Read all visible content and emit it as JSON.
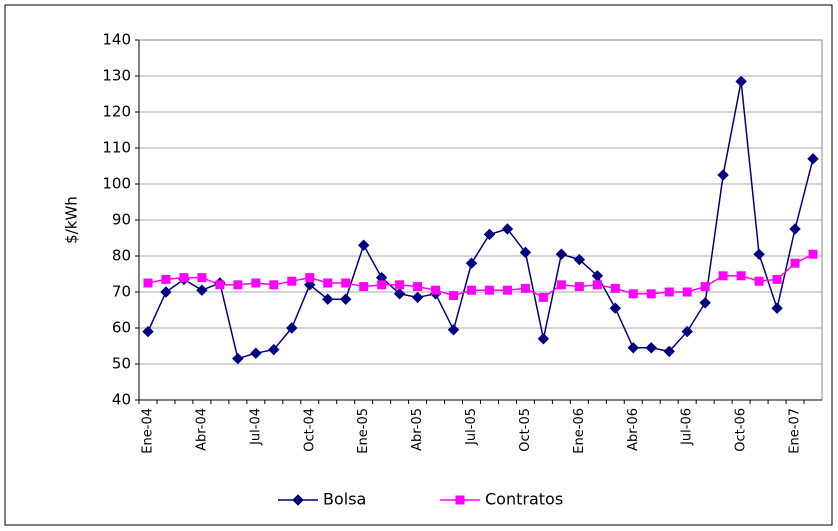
{
  "chart_data": {
    "type": "line",
    "y_label": "$/kWh",
    "categories": [
      "Ene-04",
      null,
      null,
      "Abr-04",
      null,
      null,
      "Jul-04",
      null,
      null,
      "Oct-04",
      null,
      null,
      "Ene-05",
      null,
      null,
      "Abr-05",
      null,
      null,
      "Jul-05",
      null,
      null,
      "Oct-05",
      null,
      null,
      "Ene-06",
      null,
      null,
      "Abr-06",
      null,
      null,
      "Jul-06",
      null,
      null,
      "Oct-06",
      null,
      null,
      "Ene-07",
      null
    ],
    "series": [
      {
        "name": "Bolsa",
        "color": "#000080",
        "marker": "diamond",
        "values": [
          59,
          70,
          73.5,
          70.5,
          72.5,
          51.5,
          53,
          54,
          60,
          72,
          68,
          68,
          83,
          74,
          69.5,
          68.5,
          69.5,
          59.5,
          78,
          86,
          87.5,
          81,
          57,
          80.5,
          79,
          74.5,
          65.5,
          54.5,
          54.5,
          53.5,
          59,
          67,
          102.5,
          128.5,
          80.5,
          65.5,
          87.5,
          107
        ]
      },
      {
        "name": "Contratos",
        "color": "#ff00ff",
        "marker": "square",
        "values": [
          72.5,
          73.5,
          74,
          74,
          72,
          72,
          72.5,
          72,
          73,
          74,
          72.5,
          72.5,
          71.5,
          72,
          72,
          71.5,
          70.5,
          69,
          70.5,
          70.5,
          70.5,
          71,
          68.5,
          72,
          71.5,
          72,
          71,
          69.5,
          69.5,
          70,
          70,
          71.5,
          74.5,
          74.5,
          73,
          73.5,
          78,
          80.5
        ]
      }
    ],
    "ylim": [
      40,
      140
    ],
    "yticks": [
      40,
      50,
      60,
      70,
      80,
      90,
      100,
      110,
      120,
      130,
      140
    ],
    "grid": true
  }
}
